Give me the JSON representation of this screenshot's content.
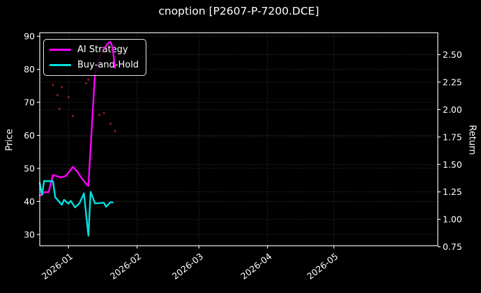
{
  "title": "cnoption [P2607-P-7200.DCE]",
  "legend": {
    "position": "upper-left",
    "items": [
      {
        "label": "AI Strategy",
        "color": "#ff00ff"
      },
      {
        "label": "Buy-and-Hold",
        "color": "#00e0e0"
      }
    ]
  },
  "chart_data": {
    "type": "line",
    "title": "cnoption [P2607-P-7200.DCE]",
    "layout": {
      "background": "#000000",
      "text_color": "#ffffff",
      "grid": true,
      "grid_style": "dotted",
      "legend_position": "upper left"
    },
    "x_axis": {
      "tick_labels": [
        "2026-01",
        "2026-02",
        "2026-03",
        "2026-04",
        "2026-05"
      ],
      "tick_dates": [
        "2026-01-01",
        "2026-02-01",
        "2026-03-01",
        "2026-04-01",
        "2026-05-01"
      ],
      "range": [
        "2025-12-19",
        "2026-06-17"
      ],
      "tick_rotation_deg": 38
    },
    "left_axis": {
      "label": "Price",
      "ticks": [
        30,
        40,
        50,
        60,
        70,
        80,
        90
      ],
      "range": [
        26.6,
        91.1
      ]
    },
    "right_axis": {
      "label": "Return",
      "ticks": [
        0.75,
        1.0,
        1.25,
        1.5,
        1.75,
        2.0,
        2.25,
        2.5
      ],
      "range": [
        0.76,
        2.7
      ]
    },
    "series": [
      {
        "name": "AI Strategy",
        "color": "#ff00ff",
        "width": 2.4,
        "axis": "left",
        "overlay_from_index": 15,
        "points": [
          [
            "2025-12-19",
            41.8
          ],
          [
            "2025-12-20",
            42.0
          ],
          [
            "2025-12-21",
            42.8
          ],
          [
            "2025-12-23",
            42.8
          ],
          [
            "2025-12-25",
            48.0
          ],
          [
            "2025-12-27",
            47.6
          ],
          [
            "2025-12-29",
            47.3
          ],
          [
            "2025-12-31",
            47.8
          ],
          [
            "2026-01-03",
            50.5
          ],
          [
            "2026-01-05",
            49.0
          ],
          [
            "2026-01-07",
            47.0
          ],
          [
            "2026-01-09",
            45.3
          ],
          [
            "2026-01-10",
            44.7
          ],
          [
            "2026-01-13",
            79.0
          ],
          [
            "2026-01-15",
            83.5
          ],
          [
            "2026-01-17",
            86.2
          ],
          [
            "2026-01-19",
            88.0
          ],
          [
            "2026-01-20",
            88.3
          ],
          [
            "2026-01-21",
            86.5
          ],
          [
            "2026-01-22",
            80.5
          ]
        ]
      },
      {
        "name": "Buy-and-Hold",
        "color": "#00e0e0",
        "width": 2.4,
        "axis": "left",
        "points": [
          [
            "2025-12-19",
            45.6
          ],
          [
            "2025-12-20",
            42.0
          ],
          [
            "2025-12-21",
            46.2
          ],
          [
            "2025-12-25",
            46.1
          ],
          [
            "2025-12-26",
            41.3
          ],
          [
            "2025-12-29",
            39.0
          ],
          [
            "2025-12-30",
            40.5
          ],
          [
            "2026-01-01",
            39.3
          ],
          [
            "2026-01-02",
            40.2
          ],
          [
            "2026-01-04",
            38.2
          ],
          [
            "2026-01-06",
            39.5
          ],
          [
            "2026-01-08",
            42.4
          ],
          [
            "2026-01-10",
            29.6
          ],
          [
            "2026-01-11",
            42.9
          ],
          [
            "2026-01-13",
            39.4
          ],
          [
            "2026-01-17",
            39.6
          ],
          [
            "2026-01-18",
            38.4
          ],
          [
            "2026-01-20",
            39.8
          ],
          [
            "2026-01-21",
            39.7
          ]
        ]
      }
    ],
    "scatter": {
      "name": "signal-dots",
      "color": "#8b2020",
      "radius": 1.6,
      "points": [
        [
          "2025-12-25",
          75.3
        ],
        [
          "2025-12-27",
          72.2
        ],
        [
          "2025-12-28",
          68.0
        ],
        [
          "2025-12-29",
          74.6
        ],
        [
          "2026-01-01",
          71.6
        ],
        [
          "2026-01-03",
          65.9
        ],
        [
          "2026-01-09",
          75.8
        ],
        [
          "2026-01-10",
          76.9
        ],
        [
          "2026-01-15",
          66.2
        ],
        [
          "2026-01-17",
          66.8
        ],
        [
          "2026-01-20",
          63.5
        ],
        [
          "2026-01-22",
          61.3
        ]
      ]
    }
  }
}
